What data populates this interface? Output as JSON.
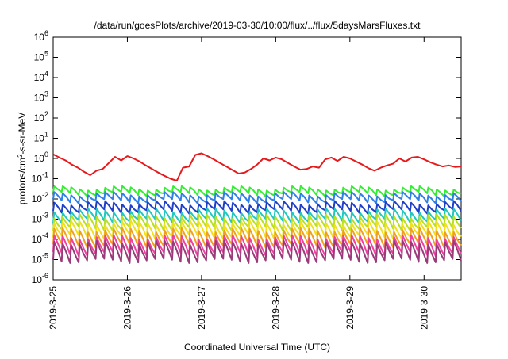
{
  "chart_data": {
    "type": "line",
    "title": "/data/run/goesPlots/archive/2019-03-30/10:00/flux/../flux/5daysMarsFluxes.txt",
    "xlabel": "Coordinated Universal Time (UTC)",
    "ylabel": {
      "prefix": "protons/cm",
      "sup": "2",
      "suffix": "-s-sr-MeV"
    },
    "yscale": "log",
    "ylim": [
      1e-06,
      1000000.0
    ],
    "xlim": [
      "2019-03-25 00:00",
      "2019-03-30 12:00"
    ],
    "y_ticks": [
      {
        "base": "10",
        "exp": "-6",
        "value": 1e-06
      },
      {
        "base": "10",
        "exp": "-5",
        "value": 1e-05
      },
      {
        "base": "10",
        "exp": "-4",
        "value": 0.0001
      },
      {
        "base": "10",
        "exp": "-3",
        "value": 0.001
      },
      {
        "base": "10",
        "exp": "-2",
        "value": 0.01
      },
      {
        "base": "10",
        "exp": "-1",
        "value": 0.1
      },
      {
        "base": "10",
        "exp": "0",
        "value": 1
      },
      {
        "base": "10",
        "exp": "1",
        "value": 10.0
      },
      {
        "base": "10",
        "exp": "2",
        "value": 100.0
      },
      {
        "base": "10",
        "exp": "3",
        "value": 1000.0
      },
      {
        "base": "10",
        "exp": "4",
        "value": 10000.0
      },
      {
        "base": "10",
        "exp": "5",
        "value": 100000.0
      },
      {
        "base": "10",
        "exp": "6",
        "value": 1000000.0
      }
    ],
    "x_ticks": [
      {
        "label": "2019-3-25",
        "value": 0
      },
      {
        "label": "2019-3-26",
        "value": 1
      },
      {
        "label": "2019-3-27",
        "value": 2
      },
      {
        "label": "2019-3-28",
        "value": 3
      },
      {
        "label": "2019-3-29",
        "value": 4
      },
      {
        "label": "2019-3-30",
        "value": 5
      }
    ],
    "grid": false,
    "legend": "none",
    "series": [
      {
        "color": "#e41a1c",
        "x": [
          "2019-03-25 00:00",
          "2019-03-25 02:00",
          "2019-03-25 04:00",
          "2019-03-25 06:00",
          "2019-03-25 08:00",
          "2019-03-25 10:00",
          "2019-03-25 12:00",
          "2019-03-25 14:00",
          "2019-03-25 16:00",
          "2019-03-25 18:00",
          "2019-03-25 20:00",
          "2019-03-25 22:00",
          "2019-03-26 00:00",
          "2019-03-26 02:00",
          "2019-03-26 04:00",
          "2019-03-26 06:00",
          "2019-03-26 08:00",
          "2019-03-26 10:00",
          "2019-03-26 12:00",
          "2019-03-26 14:00",
          "2019-03-26 16:00",
          "2019-03-26 18:00",
          "2019-03-26 20:00",
          "2019-03-26 22:00",
          "2019-03-27 00:00",
          "2019-03-27 02:00",
          "2019-03-27 04:00",
          "2019-03-27 06:00",
          "2019-03-27 08:00",
          "2019-03-27 10:00",
          "2019-03-27 12:00",
          "2019-03-27 14:00",
          "2019-03-27 16:00",
          "2019-03-27 18:00",
          "2019-03-27 20:00",
          "2019-03-27 22:00",
          "2019-03-28 00:00",
          "2019-03-28 02:00",
          "2019-03-28 04:00",
          "2019-03-28 06:00",
          "2019-03-28 08:00",
          "2019-03-28 10:00",
          "2019-03-28 12:00",
          "2019-03-28 14:00",
          "2019-03-28 16:00",
          "2019-03-28 18:00",
          "2019-03-28 20:00",
          "2019-03-28 22:00",
          "2019-03-29 00:00",
          "2019-03-29 02:00",
          "2019-03-29 04:00",
          "2019-03-29 06:00",
          "2019-03-29 08:00",
          "2019-03-29 10:00",
          "2019-03-29 12:00",
          "2019-03-29 14:00",
          "2019-03-29 16:00",
          "2019-03-29 18:00",
          "2019-03-29 20:00",
          "2019-03-29 22:00",
          "2019-03-30 00:00",
          "2019-03-30 02:00",
          "2019-03-30 04:00",
          "2019-03-30 06:00",
          "2019-03-30 08:00",
          "2019-03-30 10:00",
          "2019-03-30 12:00"
        ],
        "y": [
          1.6,
          1.1,
          0.8,
          0.5,
          0.35,
          0.22,
          0.15,
          0.25,
          0.3,
          0.6,
          1.2,
          0.8,
          1.3,
          1.0,
          0.7,
          0.45,
          0.3,
          0.2,
          0.14,
          0.1,
          0.08,
          0.35,
          0.4,
          1.5,
          1.8,
          1.3,
          0.9,
          0.6,
          0.4,
          0.27,
          0.18,
          0.2,
          0.3,
          0.5,
          1.0,
          0.8,
          1.1,
          0.9,
          0.6,
          0.4,
          0.28,
          0.3,
          0.4,
          0.35,
          0.9,
          1.1,
          0.75,
          1.2,
          1.0,
          0.7,
          0.5,
          0.33,
          0.25,
          0.35,
          0.45,
          0.55,
          1.0,
          0.7,
          1.1,
          1.2,
          0.9,
          0.65,
          0.5,
          0.4,
          0.45,
          0.38,
          0.4
        ]
      },
      {
        "color": "#33ee33",
        "base": 0.025,
        "amp": 1.4,
        "teeth": 48
      },
      {
        "color": "#2f7fe8",
        "base": 0.012,
        "amp": 1.5,
        "teeth": 48
      },
      {
        "color": "#1f3fc8",
        "base": 0.004,
        "amp": 1.6,
        "teeth": 48
      },
      {
        "color": "#20c8c0",
        "base": 0.0015,
        "amp": 1.8,
        "teeth": 48
      },
      {
        "color": "#b8e020",
        "base": 0.0007,
        "amp": 2.0,
        "teeth": 48
      },
      {
        "color": "#f0e020",
        "base": 0.0003,
        "amp": 2.2,
        "teeth": 48
      },
      {
        "color": "#f0a020",
        "base": 0.00012,
        "amp": 2.4,
        "teeth": 48
      },
      {
        "color": "#f040a0",
        "base": 5e-05,
        "amp": 2.6,
        "teeth": 48
      },
      {
        "color": "#9b3a7a",
        "base": 2.5e-05,
        "amp": 2.8,
        "teeth": 48
      }
    ]
  }
}
